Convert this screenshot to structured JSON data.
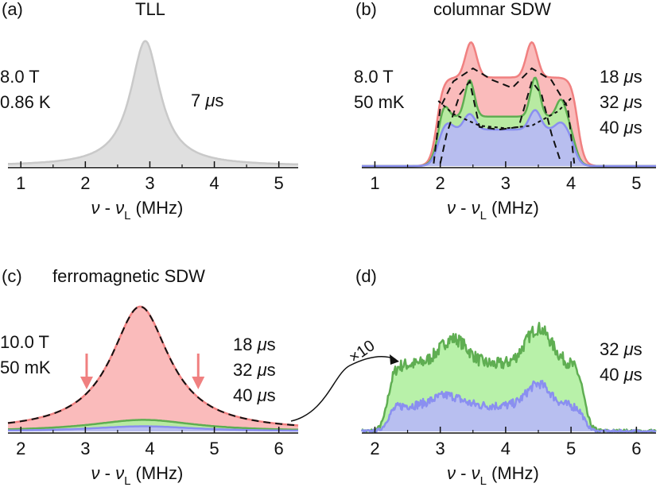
{
  "chart_data": [
    {
      "type": "area",
      "panel_label": "(a)",
      "title": "TLL",
      "conditions": [
        "8.0 T",
        "0.86 K"
      ],
      "xlabel": {
        "nu": "ν",
        "sep": "-",
        "nu2": "ν",
        "sub": "L",
        "unit": "(MHz)"
      },
      "xlim": [
        0.8,
        5.3
      ],
      "xticks": [
        1,
        2,
        3,
        4,
        5
      ],
      "ylim": [
        0,
        1.0
      ],
      "series": [
        {
          "name": "7 μs",
          "label_value": "7",
          "label_unit": "μs",
          "color": "#c9c9c9",
          "fill": "#dcdcdc",
          "center": 2.93,
          "width": 0.28,
          "amplitude": 0.96
        }
      ]
    },
    {
      "type": "area",
      "panel_label": "(b)",
      "title": "columnar SDW",
      "conditions": [
        "8.0 T",
        "50 mK"
      ],
      "xlabel": {
        "nu": "ν",
        "sep": "-",
        "nu2": "ν",
        "sub": "L",
        "unit": "(MHz)"
      },
      "xlim": [
        0.8,
        5.3
      ],
      "xticks": [
        1,
        2,
        3,
        4,
        5
      ],
      "ylim": [
        0,
        1.0
      ],
      "series": [
        {
          "name": "18 μs",
          "label_value": "18",
          "label_unit": "μs",
          "color": "#f08080",
          "fill": "#f9b4b4",
          "edges": [
            1.95,
            4.1
          ],
          "base": 0.68,
          "peaks": [
            [
              2.47,
              0.27,
              0.12
            ],
            [
              3.4,
              0.27,
              0.12
            ]
          ]
        },
        {
          "name": "32 μs",
          "label_value": "32",
          "label_unit": "μs",
          "color": "#5fae52",
          "fill": "#b0efa0",
          "edges": [
            1.95,
            4.05
          ],
          "base": 0.38,
          "peaks": [
            [
              2.05,
              0.12,
              0.1
            ],
            [
              2.45,
              0.28,
              0.1
            ],
            [
              3.45,
              0.3,
              0.1
            ],
            [
              3.85,
              0.14,
              0.1
            ]
          ]
        },
        {
          "name": "40 μs",
          "label_value": "40",
          "label_unit": "μs",
          "color": "#8a8ff0",
          "fill": "#b8b9f7",
          "edges": [
            1.95,
            4.05
          ],
          "base": 0.28,
          "peaks": [
            [
              2.1,
              0.06,
              0.12
            ],
            [
              2.45,
              0.12,
              0.12
            ],
            [
              3.45,
              0.15,
              0.12
            ],
            [
              3.85,
              0.06,
              0.12
            ]
          ]
        }
      ],
      "fits": [
        {
          "style": "dashed",
          "points": [
            [
              1.9,
              0.02
            ],
            [
              2.0,
              0.45
            ],
            [
              2.2,
              0.65
            ],
            [
              2.5,
              0.75
            ],
            [
              2.8,
              0.66
            ],
            [
              3.1,
              0.6
            ],
            [
              3.4,
              0.75
            ],
            [
              3.7,
              0.66
            ],
            [
              3.95,
              0.45
            ],
            [
              4.05,
              0.02
            ]
          ]
        },
        {
          "style": "dashed",
          "points": [
            [
              2.0,
              0.02
            ],
            [
              2.1,
              0.25
            ],
            [
              2.3,
              0.55
            ],
            [
              2.45,
              0.65
            ],
            [
              2.6,
              0.3
            ],
            [
              2.9,
              0.28
            ],
            [
              3.2,
              0.3
            ],
            [
              3.4,
              0.65
            ],
            [
              3.55,
              0.55
            ],
            [
              3.7,
              0.25
            ],
            [
              3.85,
              0.02
            ]
          ]
        },
        {
          "style": "dotted",
          "points": [
            [
              1.97,
              0.5
            ],
            [
              2.2,
              0.4
            ],
            [
              2.6,
              0.31
            ],
            [
              3.0,
              0.29
            ],
            [
              3.4,
              0.31
            ],
            [
              3.8,
              0.42
            ],
            [
              4.0,
              0.52
            ]
          ]
        }
      ]
    },
    {
      "type": "area",
      "panel_label": "(c)",
      "title": "ferromagnetic SDW",
      "conditions": [
        "10.0 T",
        "50 mK"
      ],
      "xlabel": {
        "nu": "ν",
        "sep": "-",
        "nu2": "ν",
        "sub": "L",
        "unit": "(MHz)"
      },
      "xlim": [
        1.8,
        6.3
      ],
      "xticks": [
        2,
        3,
        4,
        5,
        6
      ],
      "ylim": [
        0,
        1.0
      ],
      "arrows_at": [
        3.02,
        4.75
      ],
      "series": [
        {
          "name": "18 μs",
          "label_value": "18",
          "label_unit": "μs",
          "color": "#f08080",
          "fill": "#f9b4b4",
          "center": 3.85,
          "width": 0.55,
          "amplitude": 0.97
        },
        {
          "name": "32 μs",
          "label_value": "32",
          "label_unit": "μs",
          "color": "#5fae52",
          "fill": "#b0efa0",
          "center": 3.9,
          "width": 1.0,
          "amplitude": 0.09
        },
        {
          "name": "40 μs",
          "label_value": "40",
          "label_unit": "μs",
          "color": "#8a8ff0",
          "fill": "#b8b9f7",
          "center": 3.9,
          "width": 1.0,
          "amplitude": 0.04
        }
      ],
      "fits": [
        {
          "style": "dashed",
          "center": 3.85,
          "width": 0.55,
          "amplitude": 0.97
        }
      ],
      "magnify_label": "×10"
    },
    {
      "type": "area",
      "panel_label": "(d)",
      "title": "",
      "xlabel": {
        "nu": "ν",
        "sep": "-",
        "nu2": "ν",
        "sub": "L",
        "unit": "(MHz)"
      },
      "xlim": [
        1.8,
        6.3
      ],
      "xticks": [
        2,
        3,
        4,
        5,
        6
      ],
      "ylim": [
        0,
        1.0
      ],
      "series": [
        {
          "name": "32 μs",
          "label_value": "32",
          "label_unit": "μs",
          "color": "#5fae52",
          "fill": "#b0efa0",
          "edges": [
            2.2,
            5.2
          ],
          "base": 0.52,
          "peaks": [
            [
              3.2,
              0.2,
              0.3
            ],
            [
              4.5,
              0.28,
              0.28
            ]
          ],
          "noise": 0.05
        },
        {
          "name": "40 μs",
          "label_value": "40",
          "label_unit": "μs",
          "color": "#8a8ff0",
          "fill": "#b8b9f7",
          "edges": [
            2.2,
            5.2
          ],
          "base": 0.2,
          "peaks": [
            [
              3.1,
              0.08,
              0.3
            ],
            [
              4.5,
              0.17,
              0.25
            ]
          ],
          "noise": 0.035
        }
      ]
    }
  ]
}
